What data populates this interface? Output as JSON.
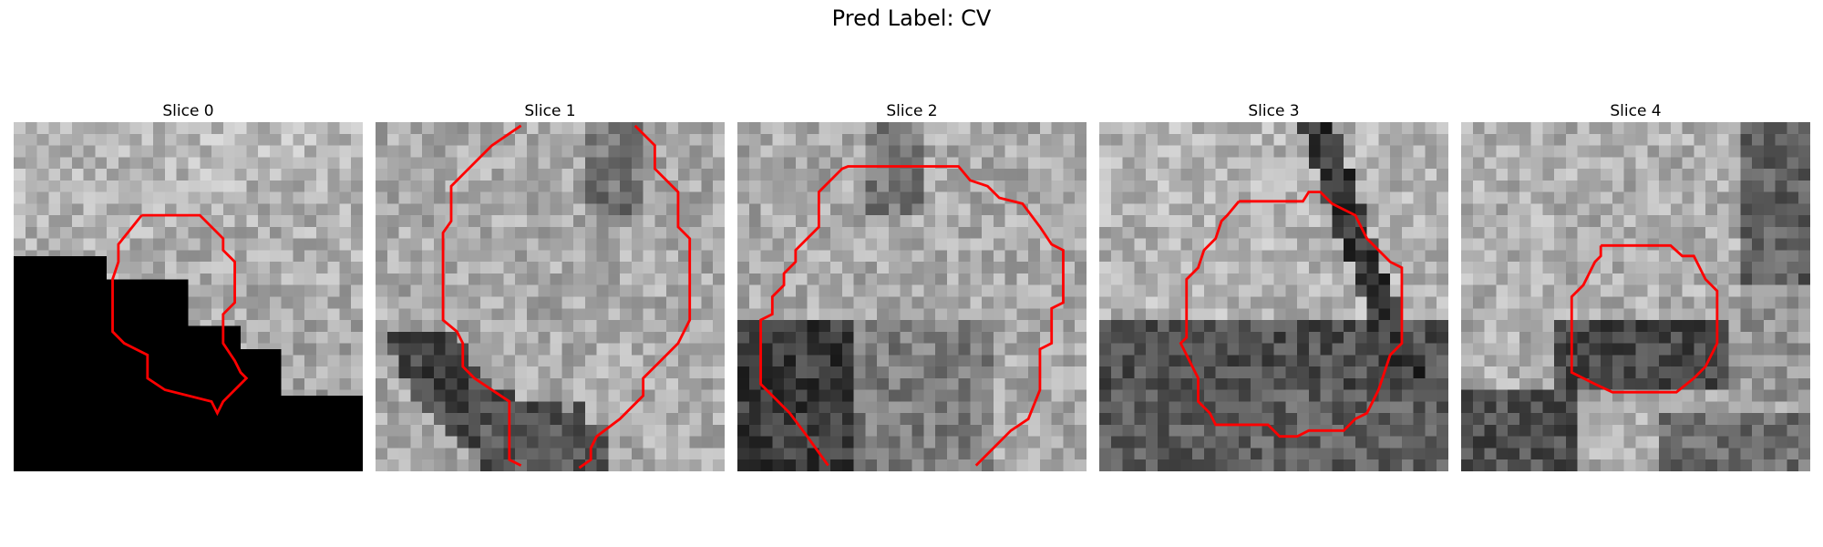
{
  "figure": {
    "title": "Pred Label: CV",
    "contour_color": "#ff0000"
  },
  "panels": [
    {
      "title": "Slice 0",
      "style": "masked"
    },
    {
      "title": "Slice 1",
      "style": "ring"
    },
    {
      "title": "Slice 2",
      "style": "dark-lower"
    },
    {
      "title": "Slice 3",
      "style": "dark-band"
    },
    {
      "title": "Slice 4",
      "style": "dark-center"
    }
  ]
}
